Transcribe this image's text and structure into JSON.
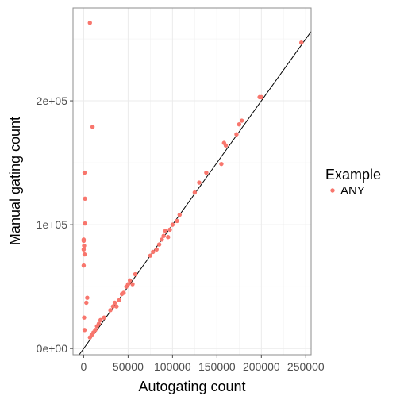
{
  "chart_data": {
    "type": "scatter",
    "xlabel": "Autogating count",
    "ylabel": "Manual gating count",
    "xlim": [
      -12000,
      256000
    ],
    "ylim": [
      -5000,
      275000
    ],
    "x_ticks": [
      0,
      50000,
      100000,
      150000,
      200000,
      250000
    ],
    "x_tick_labels": [
      "0",
      "50000",
      "100000",
      "150000",
      "200000",
      "250000"
    ],
    "y_ticks": [
      0,
      100000,
      200000
    ],
    "y_tick_labels": [
      "0e+00",
      "1e+05",
      "2e+05"
    ],
    "grid": true,
    "legend": {
      "title": "Example",
      "placement": "right",
      "entries": [
        {
          "label": "ANY",
          "color": "#F8766D"
        }
      ]
    },
    "reference_line": {
      "slope": 1,
      "intercept": 0
    },
    "series": [
      {
        "name": "ANY",
        "color": "#F8766D",
        "x": [
          7000,
          10000,
          1000,
          1500,
          1500,
          0,
          0,
          500,
          0,
          1000,
          4000,
          3000,
          0,
          500,
          1000,
          7000,
          9000,
          11000,
          13000,
          15000,
          17000,
          19000,
          23000,
          30000,
          33000,
          35000,
          37000,
          40000,
          43000,
          45000,
          48000,
          50000,
          52000,
          55000,
          58000,
          75000,
          78000,
          82000,
          85000,
          88000,
          90000,
          92000,
          95000,
          97000,
          100000,
          105000,
          108000,
          125000,
          130000,
          138000,
          155000,
          158000,
          160000,
          172000,
          175000,
          178000,
          198000,
          200000,
          245000
        ],
        "y": [
          263000,
          179000,
          142000,
          121000,
          101000,
          88000,
          87000,
          83000,
          80000,
          76000,
          41000,
          37000,
          67000,
          25000,
          15000,
          9000,
          11000,
          13000,
          15000,
          18000,
          20000,
          23000,
          25000,
          31000,
          34000,
          37000,
          34000,
          39000,
          44000,
          45000,
          50000,
          52000,
          55000,
          52000,
          60000,
          75000,
          78000,
          80000,
          84000,
          88000,
          91000,
          95000,
          90000,
          96000,
          100000,
          103000,
          108000,
          126000,
          134000,
          142000,
          149000,
          166000,
          164000,
          173000,
          181000,
          184000,
          203000,
          203000,
          247000
        ]
      }
    ]
  }
}
